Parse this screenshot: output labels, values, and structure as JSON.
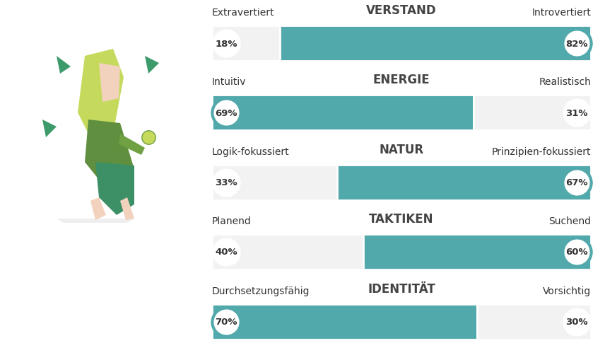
{
  "chart_data": {
    "type": "bar",
    "orientation": "horizontal",
    "stacked": true,
    "data_labels": true,
    "tick_labels": false,
    "categories": [
      "VERSTAND",
      "ENERGIE",
      "NATUR",
      "TAKTIKEN",
      "IDENTITÄT"
    ],
    "left_labels": [
      "Extravertiert",
      "Intuitiv",
      "Logik-fokussiert",
      "Planend",
      "Durchsetzungsfähig"
    ],
    "right_labels": [
      "Introvertiert",
      "Realistisch",
      "Prinzipien-fokussiert",
      "Suchend",
      "Vorsichtig"
    ],
    "left_values": [
      18,
      69,
      33,
      40,
      70
    ],
    "right_values": [
      82,
      31,
      67,
      60,
      30
    ],
    "left_value_labels": [
      "18%",
      "69%",
      "33%",
      "40%",
      "70%"
    ],
    "right_value_labels": [
      "82%",
      "31%",
      "67%",
      "60%",
      "30%"
    ],
    "xlim": [
      0,
      100
    ],
    "color": "#52a9ac"
  }
}
